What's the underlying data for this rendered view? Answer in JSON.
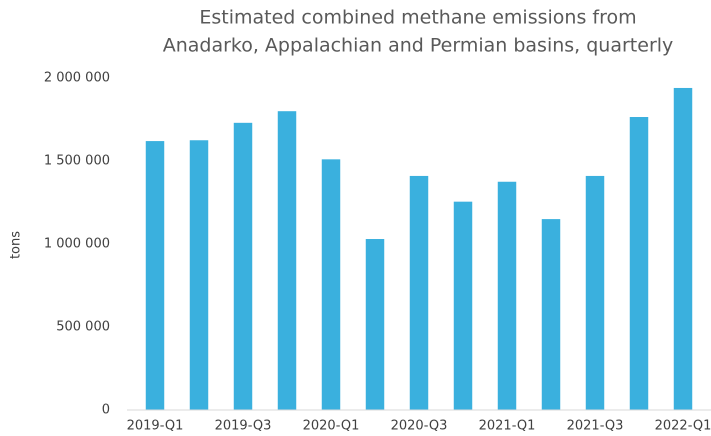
{
  "chart_data": {
    "type": "bar",
    "title": [
      "Estimated combined methane emissions from",
      "Anadarko, Appalachian and Permian basins, quarterly"
    ],
    "y_label": "tons",
    "categories": [
      "2019-Q1",
      null,
      "2019-Q3",
      null,
      "2020-Q1",
      null,
      "2020-Q3",
      null,
      "2021-Q1",
      null,
      "2021-Q3",
      null,
      "2022-Q1"
    ],
    "values": [
      1620000,
      1625000,
      1730000,
      1800000,
      1510000,
      1030000,
      1410000,
      1255000,
      1375000,
      1150000,
      1410000,
      1765000,
      1940000
    ],
    "color": "#3ab0de",
    "ylim": [
      0,
      2000000
    ],
    "yticks": [
      0,
      {
        "value": 500000,
        "label": "500 000"
      },
      {
        "value": 1000000,
        "label": "1 000 000"
      },
      {
        "value": 1500000,
        "label": "1 500 000"
      },
      {
        "value": 2000000,
        "label": "2 000 000"
      }
    ],
    "grid": false
  }
}
